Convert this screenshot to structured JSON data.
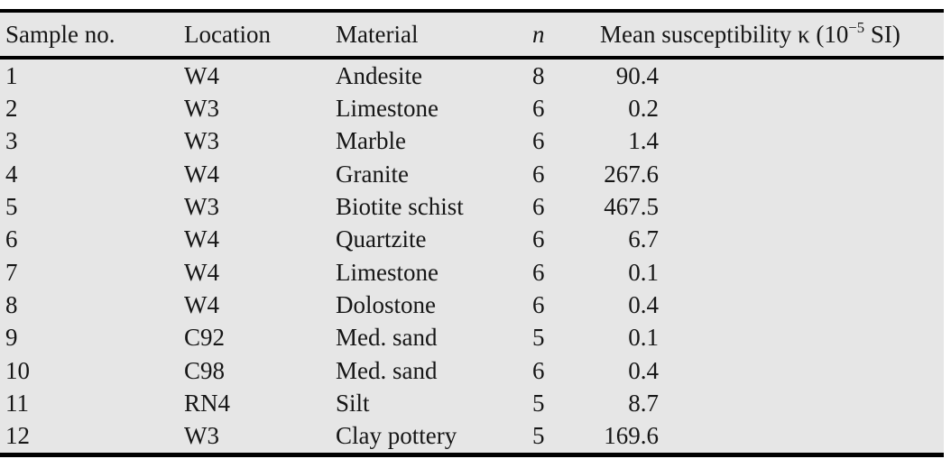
{
  "table": {
    "headers": {
      "sample_no": "Sample no.",
      "location": "Location",
      "material": "Material",
      "n": "n",
      "susceptibility": {
        "prefix": "Mean susceptibility κ (10",
        "sup": "−5",
        "suffix": " SI)"
      }
    },
    "rows": [
      {
        "sample": "1",
        "location": "W4",
        "material": "Andesite",
        "n": "8",
        "susceptibility": "90.4"
      },
      {
        "sample": "2",
        "location": "W3",
        "material": "Limestone",
        "n": "6",
        "susceptibility": "0.2"
      },
      {
        "sample": "3",
        "location": "W3",
        "material": "Marble",
        "n": "6",
        "susceptibility": "1.4"
      },
      {
        "sample": "4",
        "location": "W4",
        "material": "Granite",
        "n": "6",
        "susceptibility": "267.6"
      },
      {
        "sample": "5",
        "location": "W3",
        "material": "Biotite schist",
        "n": "6",
        "susceptibility": "467.5"
      },
      {
        "sample": "6",
        "location": "W4",
        "material": "Quartzite",
        "n": "6",
        "susceptibility": "6.7"
      },
      {
        "sample": "7",
        "location": "W4",
        "material": "Limestone",
        "n": "6",
        "susceptibility": "0.1"
      },
      {
        "sample": "8",
        "location": "W4",
        "material": "Dolostone",
        "n": "6",
        "susceptibility": "0.4"
      },
      {
        "sample": "9",
        "location": "C92",
        "material": "Med. sand",
        "n": "5",
        "susceptibility": "0.1"
      },
      {
        "sample": "10",
        "location": "C98",
        "material": "Med. sand",
        "n": "6",
        "susceptibility": "0.4"
      },
      {
        "sample": "11",
        "location": "RN4",
        "material": "Silt",
        "n": "5",
        "susceptibility": "8.7"
      },
      {
        "sample": "12",
        "location": "W3",
        "material": "Clay pottery",
        "n": "5",
        "susceptibility": "169.6"
      }
    ],
    "colors": {
      "table_background": "#e6e6e6",
      "rule": "#000000",
      "text": "#161616"
    }
  }
}
